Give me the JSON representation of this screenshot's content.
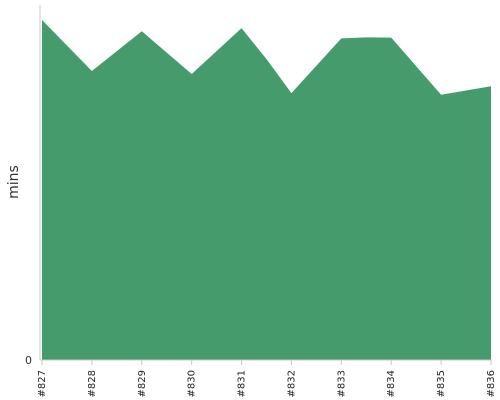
{
  "chart_data": {
    "type": "area",
    "title": "",
    "xlabel": "",
    "ylabel": "mins",
    "categories": [
      "#827",
      "#828",
      "#829",
      "#830",
      "#831",
      "#832",
      "#833",
      "#834",
      "#835",
      "#836"
    ],
    "series": [
      {
        "x": [
          "#827",
          "#828",
          "#829",
          "#830",
          "#831",
          "#832",
          "#833",
          "#833.5",
          "#834",
          "#835",
          "#836"
        ],
        "values": [
          100,
          85,
          96.7,
          84.1,
          97.6,
          78.5,
          94.6,
          94.9,
          94.8,
          78,
          80.5
        ]
      }
    ],
    "points": [
      {
        "pos": 0,
        "value": 100
      },
      {
        "pos": 1,
        "value": 85
      },
      {
        "pos": 2,
        "value": 96.7
      },
      {
        "pos": 3,
        "value": 84.1
      },
      {
        "pos": 4,
        "value": 97.6
      },
      {
        "pos": 4.5,
        "value": 88.5
      },
      {
        "pos": 5,
        "value": 78.5
      },
      {
        "pos": 6,
        "value": 94.6
      },
      {
        "pos": 6.5,
        "value": 94.9
      },
      {
        "pos": 7,
        "value": 94.8
      },
      {
        "pos": 8,
        "value": 78
      },
      {
        "pos": 9,
        "value": 80.5
      }
    ],
    "y_ticks": [
      {
        "value": 0,
        "label": "0"
      }
    ],
    "ylim": [
      0,
      100
    ],
    "fill_color": "#459b6c",
    "grid": false,
    "legend": "none"
  }
}
